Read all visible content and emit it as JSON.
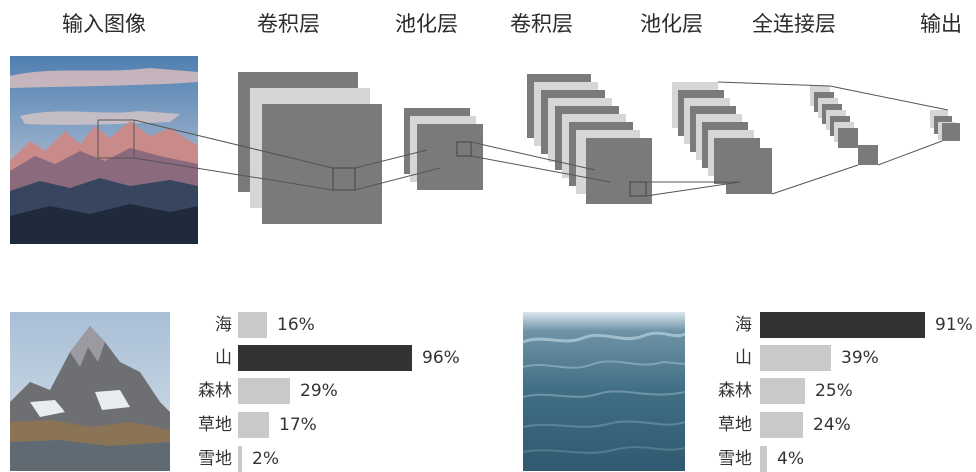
{
  "headers": {
    "input": "输入图像",
    "conv1": "卷积层",
    "pool1": "池化层",
    "conv2": "卷积层",
    "pool2": "池化层",
    "fc": "全连接层",
    "output": "输出"
  },
  "colors": {
    "layer_gray": "#7a7a7a",
    "layer_light": "#d6d6d6",
    "bar_dark": "#333333",
    "bar_light": "#c9c9c9"
  },
  "example_mountain": {
    "bars": [
      {
        "label": "海",
        "value": 16,
        "text": "16%"
      },
      {
        "label": "山",
        "value": 96,
        "text": "96%"
      },
      {
        "label": "森林",
        "value": 29,
        "text": "29%"
      },
      {
        "label": "草地",
        "value": 17,
        "text": "17%"
      },
      {
        "label": "雪地",
        "value": 2,
        "text": "2%"
      }
    ],
    "highlight": 1
  },
  "example_sea": {
    "bars": [
      {
        "label": "海",
        "value": 91,
        "text": "91%"
      },
      {
        "label": "山",
        "value": 39,
        "text": "39%"
      },
      {
        "label": "森林",
        "value": 25,
        "text": "25%"
      },
      {
        "label": "草地",
        "value": 24,
        "text": "24%"
      },
      {
        "label": "雪地",
        "value": 4,
        "text": "4%"
      }
    ],
    "highlight": 0
  }
}
